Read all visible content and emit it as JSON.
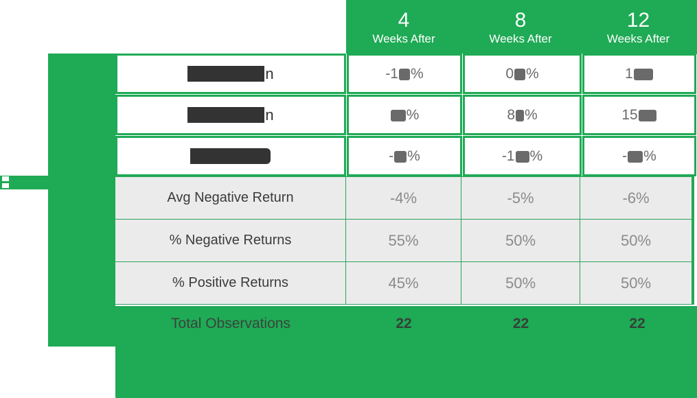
{
  "palette": {
    "green": "#1faa55",
    "gray_row_bg": "#ebebeb",
    "white_row_value_color": "#6a6a6a",
    "gray_row_value_color": "#8b8b8b",
    "redaction_dark": "#333333",
    "footer_text": "#3a443c"
  },
  "header": {
    "columns": [
      {
        "number": "4",
        "label": "Weeks After"
      },
      {
        "number": "8",
        "label": "Weeks After"
      },
      {
        "number": "12",
        "label": "Weeks After"
      }
    ]
  },
  "redacted_rows": [
    {
      "label_suffix": "n",
      "cells": [
        {
          "pre": "-1",
          "post": "%"
        },
        {
          "pre": "0",
          "post": "%"
        },
        {
          "pre": "1",
          "post": ""
        }
      ]
    },
    {
      "label_suffix": "n",
      "cells": [
        {
          "pre": "",
          "post": "%"
        },
        {
          "pre": "8",
          "post": "%"
        },
        {
          "pre": "15",
          "post": ""
        }
      ]
    },
    {
      "label_suffix": "",
      "cells": [
        {
          "pre": "-",
          "post": "%"
        },
        {
          "pre": "-1",
          "post": "%"
        },
        {
          "pre": "-",
          "post": "%"
        }
      ]
    }
  ],
  "stat_rows": [
    {
      "label": "Avg Negative Return",
      "values": [
        "-4%",
        "-5%",
        "-6%"
      ]
    },
    {
      "label": "% Negative Returns",
      "values": [
        "55%",
        "50%",
        "50%"
      ]
    },
    {
      "label": "% Positive Returns",
      "values": [
        "45%",
        "50%",
        "50%"
      ]
    }
  ],
  "footer": {
    "label": "Total Observations",
    "values": [
      "22",
      "22",
      "22"
    ]
  },
  "chart_data": {
    "type": "table",
    "columns": [
      "",
      "4 Weeks After",
      "8 Weeks After",
      "12 Weeks After"
    ],
    "rows": [
      {
        "label": "[redacted]…n",
        "values": [
          "-1[redacted]%",
          "0[redacted]%",
          "1[redacted]"
        ]
      },
      {
        "label": "[redacted]…n",
        "values": [
          "[redacted]%",
          "8[redacted]%",
          "15[redacted]"
        ]
      },
      {
        "label": "[redacted]",
        "values": [
          "-[redacted]%",
          "-1[redacted]%",
          "-[redacted]%"
        ]
      },
      {
        "label": "Avg Negative Return",
        "values": [
          "-4%",
          "-5%",
          "-6%"
        ]
      },
      {
        "label": "% Negative Returns",
        "values": [
          "55%",
          "50%",
          "50%"
        ]
      },
      {
        "label": "% Positive Returns",
        "values": [
          "45%",
          "50%",
          "50%"
        ]
      },
      {
        "label": "Total Observations",
        "values": [
          "22",
          "22",
          "22"
        ]
      }
    ],
    "legend_position": "none",
    "grid": true
  }
}
